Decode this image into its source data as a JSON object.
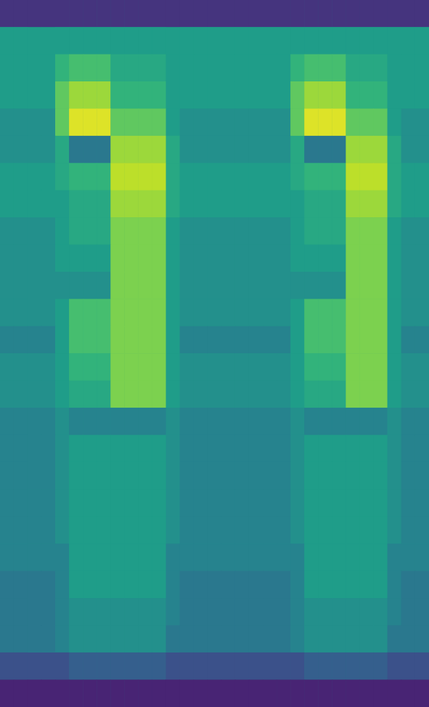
{
  "chart_data": {
    "type": "heatmap",
    "tick_labels": false,
    "color_range": [
      0,
      10
    ],
    "colors": [
      "#440154",
      "#482878",
      "#3e4989",
      "#31688e",
      "#26828e",
      "#1f9e89",
      "#35b779",
      "#6ece58",
      "#b5de2b",
      "#fde725"
    ],
    "cells": [
      [
        1.5,
        1.5,
        1.5,
        1.5,
        1.5,
        1.5,
        1.5,
        1.5,
        1.5,
        1.5,
        1.5,
        1.5,
        1.5,
        1.5,
        1.5,
        1.5,
        1.5,
        1.5,
        1.5,
        1.5,
        1.5,
        1.5,
        1.5,
        1.5,
        1.5,
        1.5,
        1.5,
        1.5,
        1.5,
        1.5,
        1.5
      ],
      [
        5.5,
        5.5,
        5.5,
        5.5,
        5.5,
        5.5,
        5.5,
        5.5,
        5.5,
        5.5,
        5.5,
        5.5,
        5.5,
        5.5,
        5.5,
        5.5,
        5.5,
        5.5,
        5.5,
        5.5,
        5.5,
        5.5,
        5.5,
        5.5,
        5.5,
        5.5,
        5.5,
        5.5,
        5.5,
        5.5,
        5.5
      ],
      [
        5.5,
        5.5,
        5.5,
        5.5,
        6.5,
        7,
        7,
        7,
        6,
        6,
        6,
        6,
        5.5,
        5.5,
        5.5,
        5.5,
        5.5,
        5.5,
        5.5,
        5.5,
        5.5,
        6.5,
        7,
        7,
        7,
        6,
        6,
        6,
        5.5,
        5.5,
        5.5
      ],
      [
        5.5,
        5.5,
        5.5,
        5.5,
        7.5,
        8.5,
        8.5,
        8.5,
        6.5,
        6.5,
        6.5,
        6.5,
        5.5,
        5.5,
        5.5,
        5.5,
        5.5,
        5.5,
        5.5,
        5.5,
        5.5,
        7.5,
        8.5,
        8.5,
        8.5,
        6.5,
        6.5,
        6.5,
        5.5,
        5.5,
        5.5
      ],
      [
        5,
        5,
        5,
        5,
        7.5,
        9.5,
        9.5,
        9.5,
        7.5,
        7.5,
        7.5,
        7.5,
        5.5,
        5,
        5,
        5,
        5,
        5,
        5,
        5,
        5,
        7.5,
        9.5,
        9.5,
        9.5,
        7.5,
        7.5,
        7.5,
        5.5,
        5,
        5
      ],
      [
        5,
        5,
        5,
        5,
        6,
        4,
        4,
        4,
        8.5,
        8.5,
        8.5,
        8.5,
        6,
        5,
        5,
        5,
        5,
        5,
        5,
        5,
        5,
        6,
        4,
        4,
        4,
        8.5,
        8.5,
        8.5,
        6,
        5,
        5
      ],
      [
        5.5,
        5.5,
        5.5,
        5.5,
        6,
        6.5,
        6.5,
        6.5,
        9,
        9,
        9,
        9,
        6,
        5.5,
        5.5,
        5.5,
        5.5,
        5.5,
        5.5,
        5.5,
        5.5,
        6,
        6.5,
        6.5,
        6.5,
        9,
        9,
        9,
        6,
        5.5,
        5.5
      ],
      [
        5.5,
        5.5,
        5.5,
        5.5,
        5.5,
        6,
        6,
        6,
        8.5,
        8.5,
        8.5,
        8.5,
        6,
        5.5,
        5.5,
        5.5,
        5.5,
        5.5,
        5.5,
        5.5,
        5.5,
        5.5,
        6,
        6,
        6,
        8.5,
        8.5,
        8.5,
        6,
        5.5,
        5.5
      ],
      [
        5,
        5,
        5,
        5,
        5.5,
        6,
        6,
        6,
        8,
        8,
        8,
        8,
        5.5,
        5,
        5,
        5,
        5,
        5,
        5,
        5,
        5,
        5.5,
        6,
        6,
        6,
        8,
        8,
        8,
        5.5,
        5,
        5
      ],
      [
        5,
        5,
        5,
        5,
        5.5,
        5.5,
        5.5,
        5.5,
        8,
        8,
        8,
        8,
        5.5,
        5,
        5,
        5,
        5,
        5,
        5,
        5,
        5,
        5.5,
        5.5,
        5.5,
        5.5,
        8,
        8,
        8,
        5.5,
        5,
        5
      ],
      [
        5,
        5,
        5,
        5,
        5,
        5,
        5,
        5,
        8,
        8,
        8,
        8,
        5.5,
        5,
        5,
        5,
        5,
        5,
        5,
        5,
        5,
        5,
        5,
        5,
        5,
        8,
        8,
        8,
        5.5,
        5,
        5
      ],
      [
        5,
        5,
        5,
        5,
        5.5,
        7,
        7,
        7,
        8,
        8,
        8,
        8,
        5.5,
        5,
        5,
        5,
        5,
        5,
        5,
        5,
        5,
        5.5,
        7,
        7,
        7,
        8,
        8,
        8,
        5.5,
        5,
        5
      ],
      [
        4.5,
        4.5,
        4.5,
        4.5,
        5.5,
        7,
        7,
        7,
        8,
        8,
        8,
        8,
        5.5,
        4.5,
        4.5,
        4.5,
        4.5,
        4.5,
        4.5,
        4.5,
        4.5,
        5.5,
        7,
        7,
        7,
        8,
        8,
        8,
        5.5,
        4.5,
        4.5
      ],
      [
        5,
        5,
        5,
        5,
        5.5,
        6.5,
        6.5,
        6.5,
        8,
        8,
        8,
        8,
        5.5,
        5,
        5,
        5,
        5,
        5,
        5,
        5,
        5,
        5.5,
        6.5,
        6.5,
        6.5,
        8,
        8,
        8,
        5.5,
        5,
        5
      ],
      [
        5,
        5,
        5,
        5,
        5.5,
        6,
        6,
        6,
        8,
        8,
        8,
        8,
        5.5,
        5,
        5,
        5,
        5,
        5,
        5,
        5,
        5,
        5.5,
        6,
        6,
        6,
        8,
        8,
        8,
        5.5,
        5,
        5
      ],
      [
        4.5,
        4.5,
        4.5,
        4.5,
        5,
        4.5,
        4.5,
        4.5,
        4.5,
        4.5,
        4.5,
        4.5,
        5,
        4.5,
        4.5,
        4.5,
        4.5,
        4.5,
        4.5,
        4.5,
        4.5,
        5,
        4.5,
        4.5,
        4.5,
        4.5,
        4.5,
        4.5,
        5,
        4.5,
        4.5
      ],
      [
        4.5,
        4.5,
        4.5,
        4.5,
        5,
        5.5,
        5.5,
        5.5,
        5.5,
        5.5,
        5.5,
        5.5,
        5,
        4.5,
        4.5,
        4.5,
        4.5,
        4.5,
        4.5,
        4.5,
        4.5,
        5,
        5.5,
        5.5,
        5.5,
        5.5,
        5.5,
        5.5,
        5,
        4.5,
        4.5
      ],
      [
        4.5,
        4.5,
        4.5,
        4.5,
        5,
        5.5,
        5.5,
        5.5,
        5.5,
        5.5,
        5.5,
        5.5,
        5,
        4.5,
        4.5,
        4.5,
        4.5,
        4.5,
        4.5,
        4.5,
        4.5,
        5,
        5.5,
        5.5,
        5.5,
        5.5,
        5.5,
        5.5,
        5,
        4.5,
        4.5
      ],
      [
        4.5,
        4.5,
        4.5,
        4.5,
        5,
        5.5,
        5.5,
        5.5,
        5.5,
        5.5,
        5.5,
        5.5,
        5,
        4.5,
        4.5,
        4.5,
        4.5,
        4.5,
        4.5,
        4.5,
        4.5,
        5,
        5.5,
        5.5,
        5.5,
        5.5,
        5.5,
        5.5,
        5,
        4.5,
        4.5
      ],
      [
        4.5,
        4.5,
        4.5,
        4.5,
        5,
        5.5,
        5.5,
        5.5,
        5.5,
        5.5,
        5.5,
        5.5,
        5,
        4.5,
        4.5,
        4.5,
        4.5,
        4.5,
        4.5,
        4.5,
        4.5,
        5,
        5.5,
        5.5,
        5.5,
        5.5,
        5.5,
        5.5,
        5,
        4.5,
        4.5
      ],
      [
        4.5,
        4.5,
        4.5,
        4.5,
        4.5,
        5.5,
        5.5,
        5.5,
        5.5,
        5.5,
        5.5,
        5.5,
        4.5,
        4.5,
        4.5,
        4.5,
        4.5,
        4.5,
        4.5,
        4.5,
        4.5,
        4.5,
        5.5,
        5.5,
        5.5,
        5.5,
        5.5,
        5.5,
        4.5,
        4.5,
        4.5
      ],
      [
        4,
        4,
        4,
        4,
        4.5,
        5.5,
        5.5,
        5.5,
        5.5,
        5.5,
        5.5,
        5.5,
        4.5,
        4,
        4,
        4,
        4,
        4,
        4,
        4,
        4,
        4.5,
        5.5,
        5.5,
        5.5,
        5.5,
        5.5,
        5.5,
        4.5,
        4,
        4
      ],
      [
        4,
        4,
        4,
        4,
        4.5,
        5,
        5,
        5,
        5,
        5,
        5,
        5,
        4.5,
        4,
        4,
        4,
        4,
        4,
        4,
        4,
        4,
        4.5,
        5,
        5,
        5,
        5,
        5,
        5,
        4.5,
        4,
        4
      ],
      [
        4,
        4,
        4,
        4,
        4.5,
        5,
        5,
        5,
        5,
        5,
        5,
        5,
        4,
        4,
        4,
        4,
        4,
        4,
        4,
        4,
        4,
        4.5,
        5,
        5,
        5,
        5,
        5,
        5,
        4,
        4,
        4
      ],
      [
        2.5,
        2.5,
        2.5,
        2.5,
        2.5,
        3,
        3,
        3,
        3,
        3,
        3,
        3,
        2.5,
        2.5,
        2.5,
        2.5,
        2.5,
        2.5,
        2.5,
        2.5,
        2.5,
        2.5,
        3,
        3,
        3,
        3,
        3,
        3,
        2.5,
        2.5,
        2.5
      ],
      [
        1,
        1,
        1,
        1,
        1,
        1,
        1,
        1,
        1,
        1,
        1,
        1,
        1,
        1,
        1,
        1,
        1,
        1,
        1,
        1,
        1,
        1,
        1,
        1,
        1,
        1,
        1,
        1,
        1,
        1,
        1
      ]
    ]
  }
}
